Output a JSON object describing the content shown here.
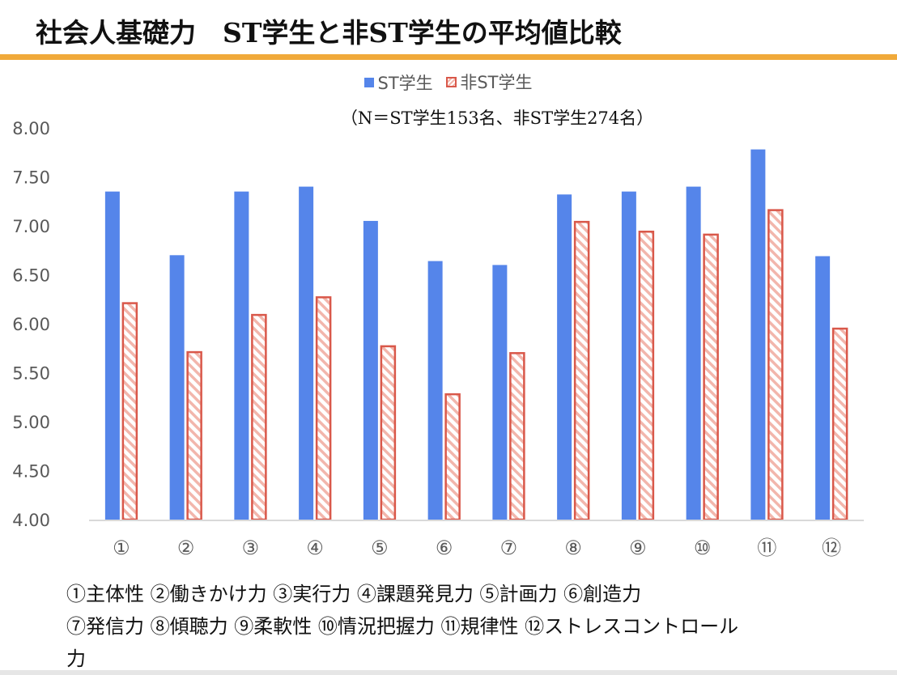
{
  "title": "社会人基礎力　ST学生と非ST学生の平均値比較",
  "colors": {
    "st": "#5585ea",
    "non_st_border": "#d9584a",
    "non_st_hatch": "#f2b6ac",
    "rule": "#f0a93a",
    "axis": "#d9d9d9"
  },
  "chart_data": {
    "type": "bar",
    "title": "社会人基礎力　ST学生と非ST学生の平均値比較",
    "subtitle": "（N＝ST学生153名、非ST学生274名）",
    "categories": [
      "①",
      "②",
      "③",
      "④",
      "⑤",
      "⑥",
      "⑦",
      "⑧",
      "⑨",
      "⑩",
      "⑪",
      "⑫"
    ],
    "series": [
      {
        "name": "ST学生",
        "values": [
          7.35,
          6.7,
          7.35,
          7.4,
          7.05,
          6.64,
          6.6,
          7.32,
          7.35,
          7.4,
          7.78,
          6.69
        ]
      },
      {
        "name": "非ST学生",
        "values": [
          6.21,
          5.71,
          6.09,
          6.27,
          5.77,
          5.28,
          5.7,
          7.04,
          6.94,
          6.91,
          7.16,
          5.95
        ]
      }
    ],
    "yticks": [
      "4.00",
      "4.50",
      "5.00",
      "5.50",
      "6.00",
      "6.50",
      "7.00",
      "7.50",
      "8.00"
    ],
    "ylim": [
      4,
      8
    ],
    "xlabel": "",
    "ylabel": "",
    "grid": false,
    "legend": "top-center"
  },
  "footnote": {
    "line1": "①主体性 ②働きかけ力 ③実行力 ④課題発見力 ⑤計画力 ⑥創造力",
    "line2": "⑦発信力 ⑧傾聴力 ⑨柔軟性 ⑩情況把握力 ⑪規律性 ⑫ストレスコントロール",
    "line3": "力"
  }
}
